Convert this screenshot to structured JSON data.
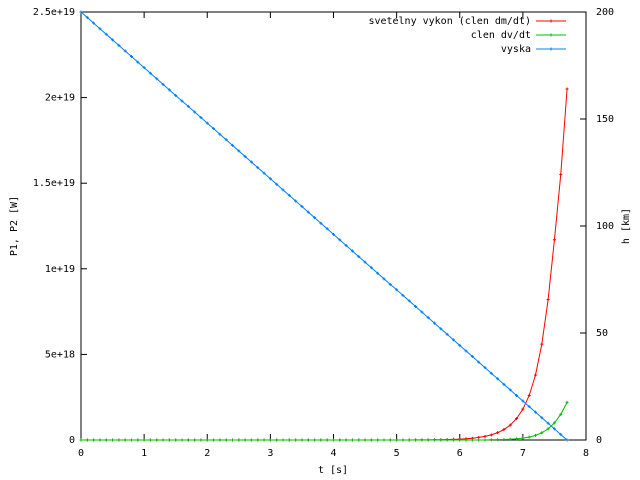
{
  "chart_data": {
    "type": "line",
    "xlabel": "t [s]",
    "ylabel": "P1, P2 [W]",
    "y2label": "h [km]",
    "xlim": [
      0,
      8
    ],
    "xticks": [
      0,
      1,
      2,
      3,
      4,
      5,
      6,
      7,
      8
    ],
    "ylim": [
      0,
      2.5e+19
    ],
    "yticks": [
      {
        "value": 0,
        "label": "0"
      },
      {
        "value": 5e+18,
        "label": "5e+18"
      },
      {
        "value": 1e+19,
        "label": "1e+19"
      },
      {
        "value": 1.5e+19,
        "label": "1.5e+19"
      },
      {
        "value": 2e+19,
        "label": "2e+19"
      },
      {
        "value": 2.5e+19,
        "label": "2.5e+19"
      }
    ],
    "y2lim": [
      0,
      200
    ],
    "y2ticks": [
      0,
      50,
      100,
      150,
      200
    ],
    "legend": "top-right",
    "x": [
      0,
      0.1,
      0.2,
      0.3,
      0.4,
      0.5,
      0.6,
      0.7,
      0.8,
      0.9,
      1,
      1.1,
      1.2,
      1.3,
      1.4,
      1.5,
      1.6,
      1.7,
      1.8,
      1.9,
      2,
      2.1,
      2.2,
      2.3,
      2.4,
      2.5,
      2.6,
      2.7,
      2.8,
      2.9,
      3,
      3.1,
      3.2,
      3.3,
      3.4,
      3.5,
      3.6,
      3.7,
      3.8,
      3.9,
      4,
      4.1,
      4.2,
      4.3,
      4.4,
      4.5,
      4.6,
      4.7,
      4.8,
      4.9,
      5,
      5.1,
      5.2,
      5.3,
      5.4,
      5.5,
      5.6,
      5.7,
      5.8,
      5.9,
      6,
      6.1,
      6.2,
      6.3,
      6.4,
      6.5,
      6.6,
      6.7,
      6.8,
      6.9,
      7,
      7.1,
      7.2,
      7.3,
      7.4,
      7.5,
      7.6,
      7.7
    ],
    "series": [
      {
        "name": "svetelny vykon (clen dm/dt)",
        "color": "#ff0000",
        "values": [
          0,
          0,
          0,
          0,
          0,
          0,
          0,
          0,
          0,
          0,
          0,
          0,
          0,
          0,
          0,
          0,
          0,
          0,
          0,
          0,
          0,
          0,
          0,
          0,
          0,
          0,
          0,
          0,
          0,
          0,
          0,
          0,
          0,
          0,
          0,
          0,
          0,
          0,
          0,
          0,
          0,
          0,
          0,
          0,
          0,
          0,
          0,
          0,
          0,
          0,
          0,
          2000000000000000.0,
          3000000000000000.0,
          4000000000000000.0,
          6000000000000000.0,
          9000000000000000.0,
          1.3e+16,
          1.8e+16,
          2.6e+16,
          3.7e+16,
          5.2e+16,
          7.4e+16,
          1.05e+17,
          1.5e+17,
          2.1e+17,
          3e+17,
          4.3e+17,
          6.1e+17,
          8.7e+17,
          1.25e+18,
          1.8e+18,
          2.6e+18,
          3.8e+18,
          5.6e+18,
          8.2e+18,
          1.17e+19,
          1.55e+19,
          2.05e+19
        ]
      },
      {
        "name": "clen dv/dt",
        "color": "#00c000",
        "values": [
          0,
          0,
          0,
          0,
          0,
          0,
          0,
          0,
          0,
          0,
          0,
          0,
          0,
          0,
          0,
          0,
          0,
          0,
          0,
          0,
          0,
          0,
          0,
          0,
          0,
          0,
          0,
          0,
          0,
          0,
          0,
          0,
          0,
          0,
          0,
          0,
          0,
          0,
          0,
          0,
          0,
          0,
          0,
          0,
          0,
          0,
          0,
          0,
          0,
          0,
          0,
          0,
          0,
          0,
          0,
          0,
          0,
          0,
          0,
          0,
          0,
          0,
          0,
          0,
          0,
          1.3e+16,
          2e+16,
          3e+16,
          4.5e+16,
          7e+16,
          1.1e+17,
          1.7e+17,
          2.7e+17,
          4.2e+17,
          6.5e+17,
          1e+18,
          1.5e+18,
          2.2e+18
        ]
      },
      {
        "name": "vyska",
        "color": "#0080ff",
        "axis": "y2",
        "values": [
          200.0,
          197.4,
          194.8,
          192.2,
          189.6,
          187.0,
          184.4,
          181.8,
          179.2,
          176.6,
          174.0,
          171.4,
          168.8,
          166.2,
          163.6,
          161.0,
          158.4,
          155.9,
          153.3,
          150.7,
          148.1,
          145.5,
          142.9,
          140.3,
          137.7,
          135.1,
          132.5,
          129.9,
          127.3,
          124.7,
          122.1,
          119.5,
          116.9,
          114.3,
          111.7,
          109.1,
          106.5,
          103.9,
          101.3,
          98.7,
          96.1,
          93.5,
          90.9,
          88.3,
          85.7,
          83.1,
          80.5,
          77.9,
          75.3,
          72.7,
          70.2,
          67.6,
          65.0,
          62.4,
          59.8,
          57.2,
          54.6,
          52.0,
          49.4,
          46.8,
          44.2,
          41.6,
          39.0,
          36.4,
          33.8,
          31.2,
          28.6,
          26.0,
          23.4,
          20.8,
          18.2,
          15.6,
          13.0,
          10.4,
          7.8,
          5.2,
          2.6,
          0.0
        ]
      }
    ]
  }
}
